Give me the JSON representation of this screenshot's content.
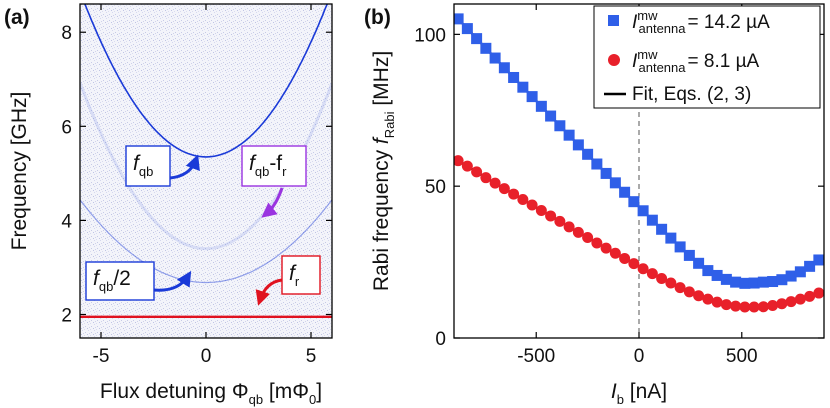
{
  "chart_data": [
    {
      "panel": "(a)",
      "type": "heatmap",
      "xlabel_main": "Flux detuning ",
      "xlabel_symbol": "Φ",
      "xlabel_sub": "qb",
      "xlabel_unit_open": " [mΦ",
      "xlabel_unit_sub": "0",
      "xlabel_unit_close": "]",
      "ylabel": "Frequency [GHz]",
      "xlim": [
        -6,
        6
      ],
      "ylim": [
        1.5,
        8.6
      ],
      "xticks": [
        -5,
        0,
        5
      ],
      "yticks": [
        2,
        4,
        6,
        8
      ],
      "curves": {
        "fqb": {
          "min_freq": 5.35,
          "edge_freq": 8.2,
          "edge_flux": 5.4,
          "color": "#1a3ad8"
        },
        "fqb_half": {
          "min_freq": 2.68,
          "color": "#1a3ad8"
        },
        "fqb_minus_fr": {
          "min_freq": 3.4,
          "color": "#1a3ad8"
        },
        "fr": {
          "freq": 1.95,
          "color": "#e0121f"
        }
      },
      "annotations": {
        "fqb": {
          "base": "f",
          "sub": "qb"
        },
        "fqb_half": {
          "base": "f",
          "sub": "qb",
          "tail": "/2"
        },
        "fqb_minus_fr": {
          "base": "f",
          "sub": "qb",
          "mid": "-f",
          "sub2": "r"
        },
        "fr": {
          "base": "f",
          "sub": "r"
        }
      },
      "annotation_colors": {
        "blue": "#1a3ad8",
        "purple": "#9a34e0",
        "red": "#e0121f"
      }
    },
    {
      "panel": "(b)",
      "type": "scatter",
      "xlabel_base": "I",
      "xlabel_sub": "b",
      "xlabel_unit": " [nA]",
      "ylabel_main": "Rabi frequency ",
      "ylabel_symbol": "f",
      "ylabel_sub": "Rabi",
      "ylabel_unit": " [MHz]",
      "xlim": [
        -900,
        900
      ],
      "ylim": [
        0,
        110
      ],
      "xticks": [
        -500,
        0,
        500
      ],
      "yticks": [
        0,
        50,
        100
      ],
      "legend_position": "top-right",
      "series": [
        {
          "name": "I^mw_antenna = 14.2 µA",
          "legend_base": "I",
          "legend_sup": "mw",
          "legend_sub": "antenna",
          "legend_value": "= 14.2 µA",
          "marker": "square",
          "color": "#2f5fe8",
          "x": [
            -880,
            -835,
            -790,
            -745,
            -700,
            -655,
            -610,
            -565,
            -520,
            -475,
            -430,
            -385,
            -340,
            -295,
            -250,
            -205,
            -160,
            -115,
            -70,
            -25,
            20,
            65,
            110,
            155,
            200,
            245,
            290,
            335,
            380,
            425,
            470,
            515,
            560,
            605,
            650,
            695,
            740,
            785,
            830,
            875
          ],
          "y": [
            105.1,
            101.9,
            98.6,
            95.4,
            92.2,
            89,
            85.8,
            82.6,
            79.5,
            76.3,
            73.1,
            69.9,
            66.8,
            63.6,
            60.5,
            57.3,
            54.2,
            51.1,
            48,
            44.9,
            41.9,
            38.8,
            35.8,
            32.9,
            30,
            27.2,
            24.6,
            22.2,
            20.6,
            19.3,
            18.4,
            18,
            18.1,
            18.4,
            18.6,
            19.2,
            20.4,
            21.8,
            23.6,
            25.7
          ]
        },
        {
          "name": "I^mw_antenna = 8.1 µA",
          "legend_base": "I",
          "legend_sup": "mw",
          "legend_sub": "antenna",
          "legend_value": "= 8.1 µA",
          "marker": "circle",
          "color": "#e8202a",
          "x": [
            -880,
            -835,
            -790,
            -745,
            -700,
            -655,
            -610,
            -565,
            -520,
            -475,
            -430,
            -385,
            -340,
            -295,
            -250,
            -205,
            -160,
            -115,
            -70,
            -25,
            20,
            65,
            110,
            155,
            200,
            245,
            290,
            335,
            380,
            425,
            470,
            515,
            560,
            605,
            650,
            695,
            740,
            785,
            830,
            875
          ],
          "y": [
            58.4,
            56.6,
            54.7,
            52.8,
            51,
            49.2,
            47.4,
            45.6,
            43.8,
            42,
            40.2,
            38.4,
            36.6,
            34.8,
            33.1,
            31.3,
            29.6,
            27.9,
            26.2,
            24.5,
            22.8,
            21.2,
            19.6,
            18.1,
            16.6,
            15.2,
            13.9,
            12.8,
            11.8,
            11,
            10.5,
            10.2,
            10.2,
            10.3,
            10.7,
            11.3,
            12,
            12.8,
            13.7,
            14.8
          ]
        },
        {
          "name": "Fit, Eqs. (2, 3)",
          "legend_label": "Fit, Eqs. (2, 3)",
          "marker": "line",
          "color": "#000000"
        }
      ]
    }
  ]
}
